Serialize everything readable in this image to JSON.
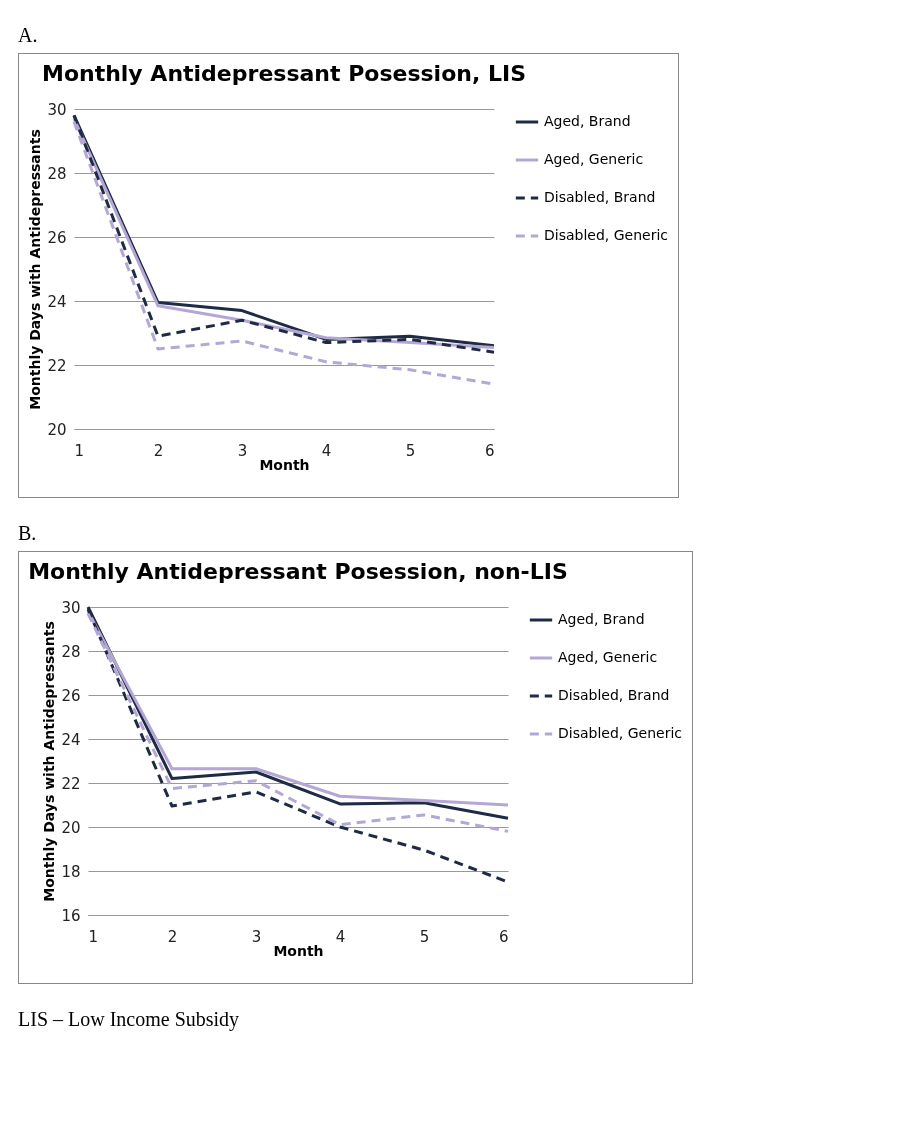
{
  "chart_data": [
    {
      "type": "line",
      "title": "Monthly Antidepressant Posession, LIS",
      "xlabel": "Month",
      "ylabel": "Monthly Days with Antidepressants",
      "annotations": [
        "A."
      ],
      "x": [
        1,
        2,
        3,
        4,
        5,
        6
      ],
      "xlim": [
        1,
        6
      ],
      "xticks": [
        1,
        2,
        3,
        4,
        5,
        6
      ],
      "ylim": [
        20,
        30
      ],
      "yticks": [
        20,
        22,
        24,
        26,
        28,
        30
      ],
      "grid": "y",
      "legend": "right",
      "series": [
        {
          "name": "Aged, Brand",
          "color": "#1f2a44",
          "line_style": "solid",
          "values": [
            29.8,
            23.95,
            23.7,
            22.8,
            22.9,
            22.6
          ]
        },
        {
          "name": "Aged, Generic",
          "color": "#b4a7d6",
          "line_style": "solid",
          "values": [
            29.7,
            23.85,
            23.4,
            22.85,
            22.7,
            22.55
          ]
        },
        {
          "name": "Disabled, Brand",
          "color": "#1f2a44",
          "line_style": "dashed",
          "values": [
            29.8,
            22.9,
            23.4,
            22.7,
            22.8,
            22.4
          ]
        },
        {
          "name": "Disabled, Generic",
          "color": "#b4a7d6",
          "line_style": "dashed",
          "values": [
            29.6,
            22.5,
            22.75,
            22.1,
            21.85,
            21.4
          ]
        }
      ]
    },
    {
      "type": "line",
      "title": "Monthly Antidepressant Posession, non-LIS",
      "xlabel": "Month",
      "ylabel": "Monthly Days with Antidepressants",
      "annotations": [
        "B.",
        "LIS – Low Income Subsidy"
      ],
      "x": [
        1,
        2,
        3,
        4,
        5,
        6
      ],
      "xlim": [
        1,
        6
      ],
      "xticks": [
        1,
        2,
        3,
        4,
        5,
        6
      ],
      "ylim": [
        16,
        30
      ],
      "yticks": [
        16,
        18,
        20,
        22,
        24,
        26,
        28,
        30
      ],
      "grid": "y",
      "legend": "right",
      "series": [
        {
          "name": "Aged, Brand",
          "color": "#1f2a44",
          "line_style": "solid",
          "values": [
            30,
            22.2,
            22.5,
            21.05,
            21.1,
            20.4
          ]
        },
        {
          "name": "Aged, Generic",
          "color": "#b4a7d6",
          "line_style": "solid",
          "values": [
            29.8,
            22.65,
            22.65,
            21.4,
            21.2,
            21.0
          ]
        },
        {
          "name": "Disabled, Brand",
          "color": "#1f2a44",
          "line_style": "dashed",
          "values": [
            29.9,
            20.95,
            21.6,
            20.0,
            18.95,
            17.5
          ]
        },
        {
          "name": "Disabled, Generic",
          "color": "#b4a7d6",
          "line_style": "dashed",
          "values": [
            29.7,
            21.75,
            22.1,
            20.1,
            20.55,
            19.8
          ]
        }
      ]
    }
  ]
}
